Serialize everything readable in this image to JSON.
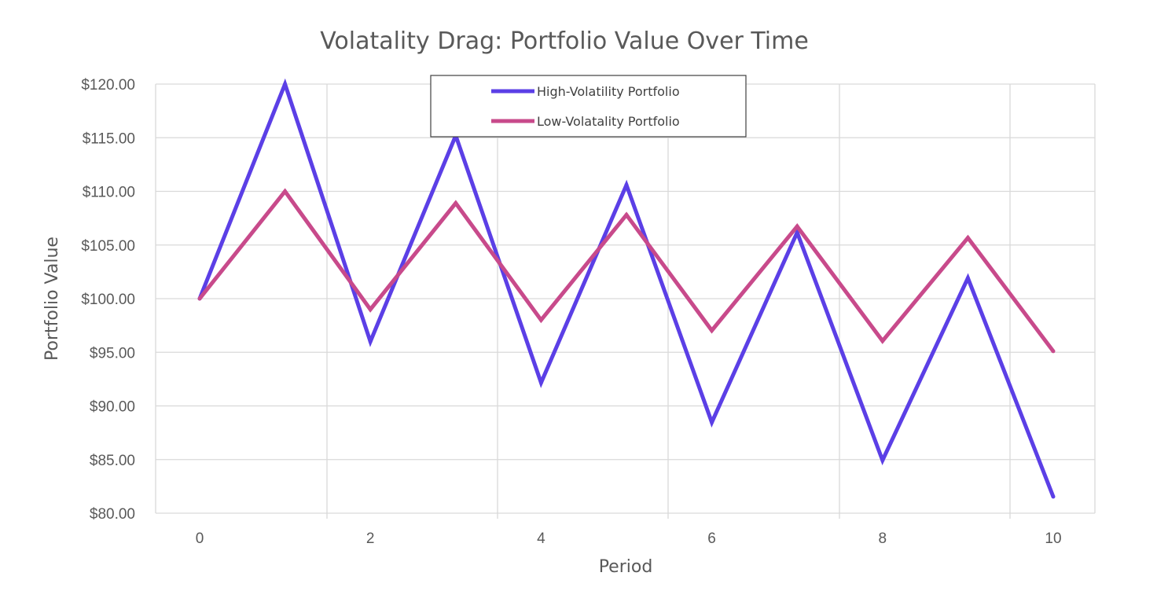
{
  "chart_data": {
    "type": "line",
    "title": "Volatality Drag: Portfolio Value Over Time",
    "xlabel": "Period",
    "ylabel": "Portfolio Value",
    "x": [
      0,
      1,
      2,
      3,
      4,
      5,
      6,
      7,
      8,
      9,
      10
    ],
    "x_tick_labels": [
      "0",
      "2",
      "4",
      "6",
      "8",
      "10"
    ],
    "y_tick_labels": [
      "$80.00",
      "$85.00",
      "$90.00",
      "$95.00",
      "$100.00",
      "$105.00",
      "$110.00",
      "$115.00",
      "$120.00"
    ],
    "ylim": [
      80,
      120
    ],
    "y_major_unit": 5,
    "series": [
      {
        "name": "High-Volatility Portfolio",
        "color": "#5b3fe6",
        "values": [
          100.0,
          120.0,
          96.0,
          115.2,
          92.16,
          110.59,
          88.47,
          106.17,
          84.93,
          101.92,
          81.54
        ]
      },
      {
        "name": "Low-Volatality Portfolio",
        "color": "#c84a8b",
        "values": [
          100.0,
          110.0,
          99.0,
          108.9,
          98.01,
          107.81,
          97.03,
          106.73,
          96.06,
          105.67,
          95.1
        ]
      }
    ],
    "grid": true,
    "legend_position": "top"
  }
}
